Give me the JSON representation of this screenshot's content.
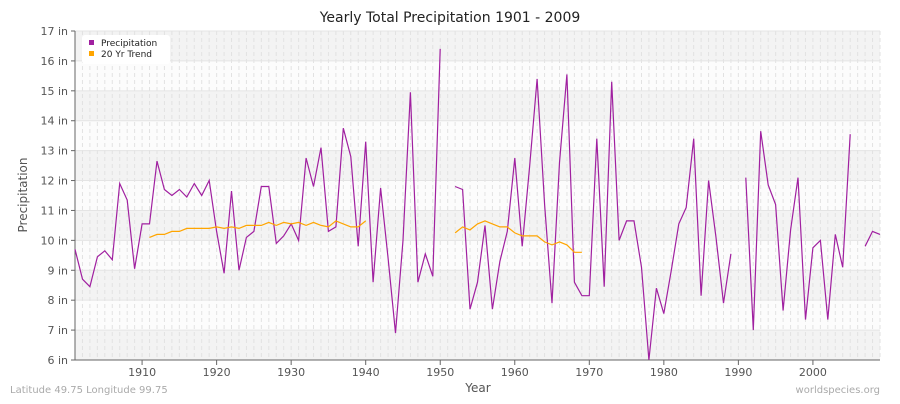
{
  "chart_data": {
    "type": "line",
    "title": "Yearly Total Precipitation 1901 - 2009",
    "xlabel": "Year",
    "ylabel": "Precipitation",
    "xlim": [
      1901,
      2009
    ],
    "ylim": [
      6,
      17
    ],
    "x_ticks": [
      1910,
      1920,
      1930,
      1940,
      1950,
      1960,
      1970,
      1980,
      1990,
      2000
    ],
    "y_ticks": [
      "6 in",
      "7 in",
      "8 in",
      "9 in",
      "10 in",
      "11 in",
      "12 in",
      "13 in",
      "14 in",
      "15 in",
      "16 in",
      "17 in"
    ],
    "grid": true,
    "legend_placement": "top-left",
    "series": [
      {
        "name": "Precipitation",
        "color": "#a020a0",
        "start_year": 1901,
        "values": [
          9.7,
          8.7,
          8.45,
          9.45,
          9.65,
          9.35,
          11.9,
          11.35,
          9.05,
          10.55,
          10.55,
          12.65,
          11.7,
          11.5,
          11.7,
          11.45,
          11.9,
          11.5,
          12.0,
          10.3,
          8.9,
          11.65,
          9.0,
          10.1,
          10.3,
          11.8,
          11.8,
          9.9,
          10.15,
          10.55,
          10.0,
          12.75,
          11.8,
          13.1,
          10.3,
          10.45,
          13.75,
          12.8,
          9.8,
          13.3,
          8.6,
          11.75,
          9.4,
          6.9,
          10.0,
          14.95,
          8.6,
          9.55,
          8.8,
          16.4,
          null,
          11.8,
          11.7,
          7.7,
          8.6,
          10.5,
          7.7,
          9.3,
          10.3,
          12.75,
          9.8,
          12.5,
          15.4,
          11.2,
          7.9,
          12.6,
          15.55,
          8.6,
          8.15,
          8.15,
          13.4,
          8.45,
          15.3,
          10.0,
          10.65,
          10.65,
          9.1,
          6.0,
          8.4,
          7.55,
          9.0,
          10.55,
          11.1,
          13.4,
          8.15,
          12.0,
          10.1,
          7.9,
          9.55,
          null,
          12.1,
          7.0,
          13.65,
          11.85,
          11.2,
          7.65,
          10.35,
          12.1,
          7.35,
          9.75,
          10.0,
          7.35,
          10.2,
          9.1,
          13.55,
          null,
          9.8,
          10.3,
          10.2
        ]
      },
      {
        "name": "20 Yr Trend",
        "color": "#ffa500",
        "start_year": 1911,
        "values": [
          10.1,
          10.2,
          10.2,
          10.3,
          10.3,
          10.4,
          10.4,
          10.4,
          10.4,
          10.45,
          10.4,
          10.45,
          10.4,
          10.5,
          10.5,
          10.5,
          10.6,
          10.5,
          10.6,
          10.55,
          10.6,
          10.5,
          10.6,
          10.5,
          10.45,
          10.65,
          10.55,
          10.45,
          10.45,
          10.65,
          null,
          null,
          null,
          null,
          null,
          null,
          null,
          null,
          null,
          null,
          null,
          10.25,
          10.45,
          10.35,
          10.55,
          10.65,
          10.55,
          10.45,
          10.45,
          10.25,
          10.15,
          10.15,
          10.15,
          9.95,
          9.85,
          9.95,
          9.85,
          9.6,
          9.6
        ]
      }
    ]
  },
  "footer": {
    "left": "Latitude 49.75 Longitude 99.75",
    "right": "worldspecies.org"
  }
}
